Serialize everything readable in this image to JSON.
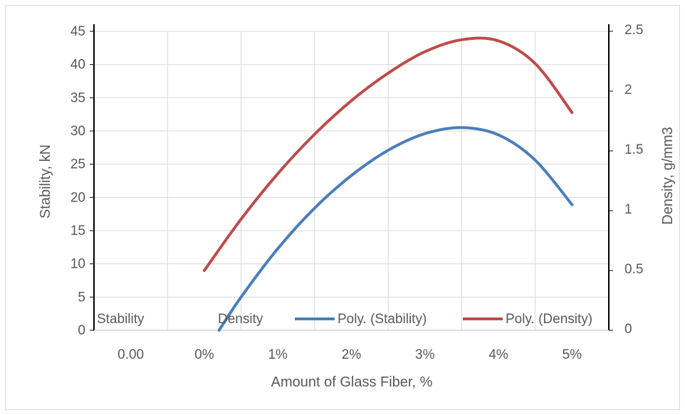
{
  "chart_data": {
    "type": "line",
    "categories": [
      "0.00",
      "0%",
      "1%",
      "2%",
      "3%",
      "4%",
      "5%"
    ],
    "xlabel": "Amount of Glass Fiber, %",
    "ylabel": "Stability, kN",
    "y2label": "Density, g/mm3",
    "ylim": [
      0,
      45
    ],
    "y2lim": [
      0,
      2.5
    ],
    "yticks": [
      "0",
      "5",
      "10",
      "15",
      "20",
      "25",
      "30",
      "35",
      "40",
      "45"
    ],
    "y2ticks": [
      "0",
      "0.5",
      "1",
      "1.5",
      "2",
      "2.5"
    ],
    "grid": true,
    "legend_position": "bottom-inside",
    "legend": [
      "Stability",
      "Density",
      "Poly. (Stability)",
      "Poly. (Density)"
    ],
    "series": [
      {
        "name": "Poly. (Stability)",
        "axis": "left",
        "color": "#4a7ebb",
        "x": [
          0.2,
          0.5,
          1,
          1.5,
          2,
          2.5,
          3,
          3.5,
          4,
          4.5,
          5
        ],
        "values": [
          0,
          5.0,
          12.3,
          18.4,
          23.3,
          27.1,
          29.6,
          30.5,
          29.4,
          25.6,
          18.9
        ]
      },
      {
        "name": "Poly. (Density)",
        "axis": "right",
        "color": "#be4b48",
        "x": [
          0,
          0.5,
          1,
          1.5,
          2,
          2.5,
          3,
          3.5,
          4,
          4.5,
          5
        ],
        "values": [
          0.5,
          0.93,
          1.31,
          1.64,
          1.92,
          2.15,
          2.33,
          2.43,
          2.42,
          2.23,
          1.82
        ]
      }
    ]
  }
}
